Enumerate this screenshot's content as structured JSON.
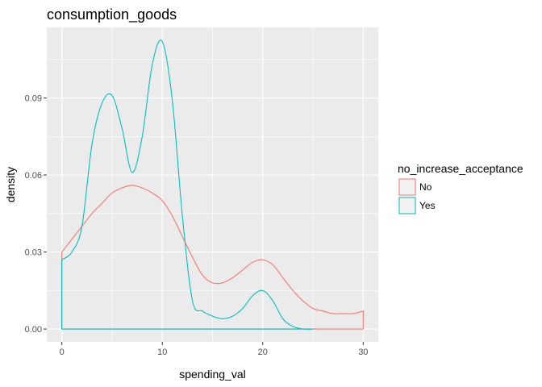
{
  "chart_data": {
    "type": "area",
    "title": "consumption_goods",
    "xlabel": "spending_val",
    "ylabel": "density",
    "xlim": [
      -1.5,
      31.5
    ],
    "ylim": [
      -0.005,
      0.1175
    ],
    "x_ticks": [
      0,
      10,
      20,
      30
    ],
    "x_tick_labels": [
      "0",
      "10",
      "20",
      "30"
    ],
    "y_ticks": [
      0.0,
      0.03,
      0.06,
      0.09
    ],
    "y_tick_labels": [
      "0.00",
      "0.03",
      "0.06",
      "0.09"
    ],
    "grid": true,
    "legend": {
      "title": "no_increase_acceptance",
      "position": "right"
    },
    "series": [
      {
        "name": "No",
        "color": "#F8766D",
        "x": [
          0,
          1,
          2,
          3,
          4,
          5,
          6,
          7,
          8,
          9,
          10,
          11,
          12,
          13,
          14,
          15,
          16,
          17,
          18,
          19,
          20,
          21,
          22,
          23,
          24,
          25,
          26,
          27,
          28,
          29,
          30
        ],
        "y": [
          0.03,
          0.035,
          0.04,
          0.045,
          0.049,
          0.053,
          0.055,
          0.056,
          0.055,
          0.053,
          0.05,
          0.044,
          0.036,
          0.028,
          0.021,
          0.018,
          0.018,
          0.02,
          0.023,
          0.026,
          0.027,
          0.025,
          0.02,
          0.015,
          0.011,
          0.008,
          0.007,
          0.006,
          0.006,
          0.006,
          0.007
        ]
      },
      {
        "name": "Yes",
        "color": "#00BFC4",
        "x": [
          0,
          1,
          2,
          3,
          4,
          5,
          6,
          7,
          8,
          9,
          10,
          11,
          12,
          13,
          14,
          15,
          16,
          17,
          18,
          19,
          20,
          21,
          22,
          23,
          24,
          25
        ],
        "y": [
          0.027,
          0.03,
          0.04,
          0.072,
          0.088,
          0.091,
          0.078,
          0.061,
          0.075,
          0.103,
          0.112,
          0.089,
          0.044,
          0.011,
          0.007,
          0.005,
          0.004,
          0.005,
          0.008,
          0.013,
          0.015,
          0.011,
          0.004,
          0.001,
          0.0,
          0.0
        ]
      }
    ]
  }
}
